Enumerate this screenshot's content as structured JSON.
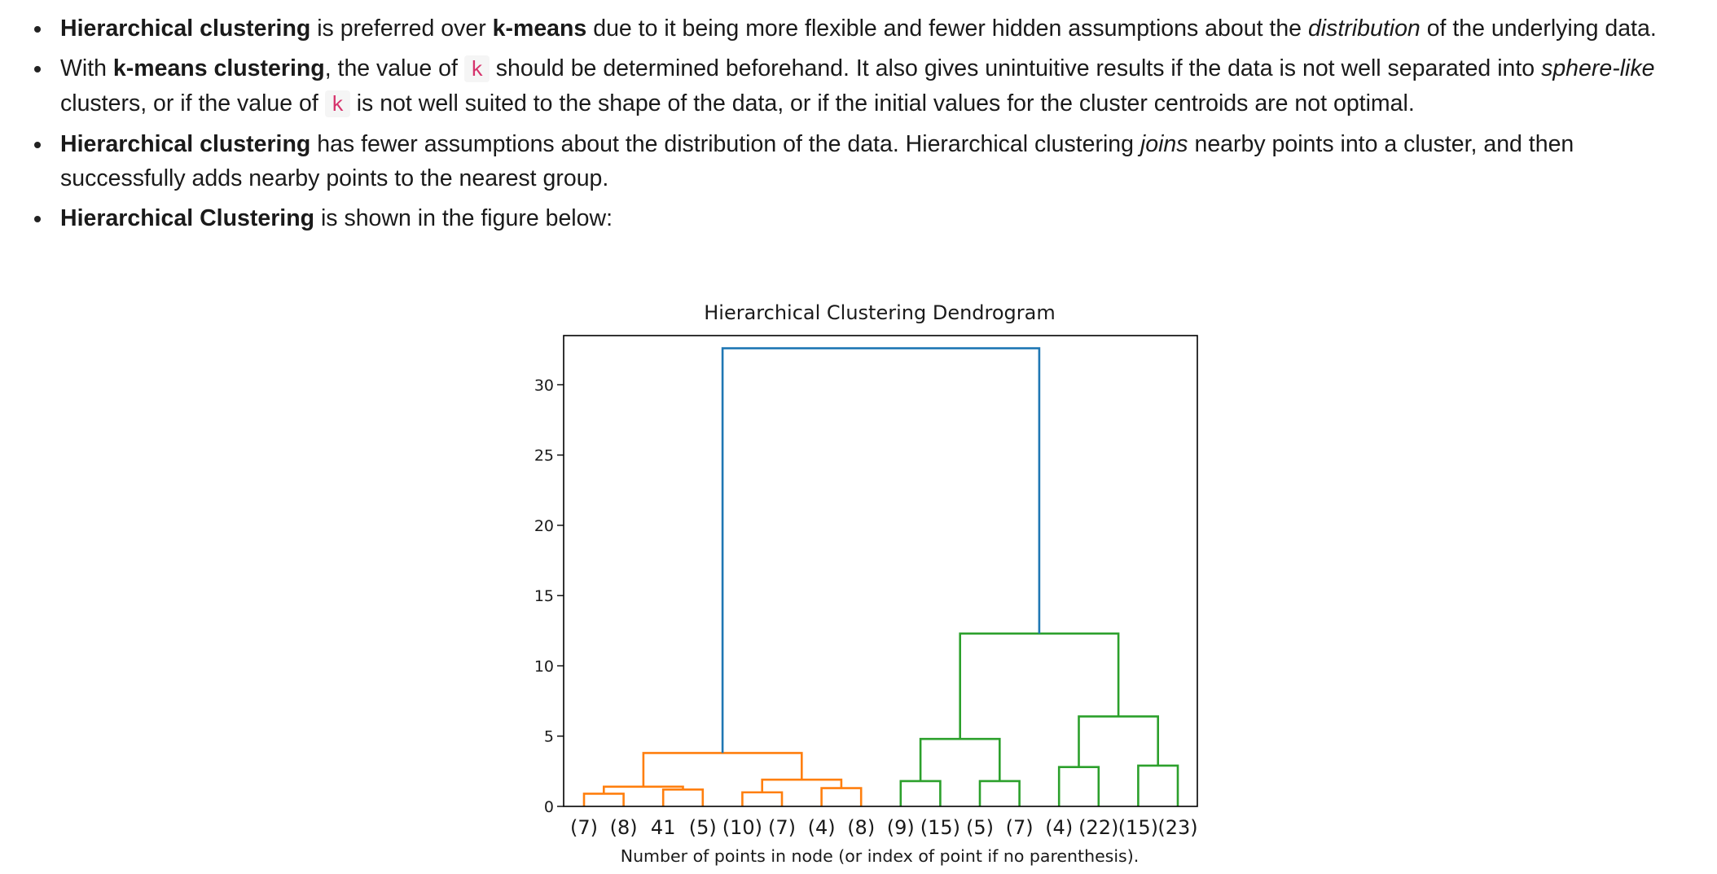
{
  "bullets": [
    {
      "parts": [
        {
          "t": "b",
          "v": "Hierarchical clustering"
        },
        {
          "t": "s",
          "v": " is preferred over "
        },
        {
          "t": "b",
          "v": "k-means"
        },
        {
          "t": "s",
          "v": " due to it being more flexible and fewer hidden assumptions about the "
        },
        {
          "t": "i",
          "v": "distribution"
        },
        {
          "t": "s",
          "v": " of the underlying data."
        }
      ]
    },
    {
      "parts": [
        {
          "t": "s",
          "v": "With "
        },
        {
          "t": "b",
          "v": "k-means clustering"
        },
        {
          "t": "s",
          "v": ", the value of "
        },
        {
          "t": "c",
          "v": "k"
        },
        {
          "t": "s",
          "v": " should be determined beforehand. It also gives unintuitive results if the data is not well separated into "
        },
        {
          "t": "i",
          "v": "sphere-like"
        },
        {
          "t": "s",
          "v": " clusters, or if the value of "
        },
        {
          "t": "c",
          "v": "k"
        },
        {
          "t": "s",
          "v": " is not well suited to the shape of the data, or if the initial values for the cluster centroids are not optimal."
        }
      ]
    },
    {
      "parts": [
        {
          "t": "b",
          "v": "Hierarchical clustering"
        },
        {
          "t": "s",
          "v": " has fewer assumptions about the distribution of the data. Hierarchical clustering "
        },
        {
          "t": "i",
          "v": "joins"
        },
        {
          "t": "s",
          "v": " nearby points into a cluster, and then successfully adds nearby points to the nearest group."
        }
      ]
    },
    {
      "parts": [
        {
          "t": "b",
          "v": "Hierarchical Clustering"
        },
        {
          "t": "s",
          "v": " is shown in the figure below:"
        }
      ]
    }
  ],
  "chart_data": {
    "type": "dendrogram",
    "title": "Hierarchical Clustering Dendrogram",
    "xlabel": "Number of points in node (or index of point if no parenthesis).",
    "ylabel": "",
    "ylim": [
      0,
      33.5
    ],
    "yticks": [
      0,
      5,
      10,
      15,
      20,
      25,
      30
    ],
    "leaves": [
      "(7)",
      "(8)",
      "41",
      "(5)",
      "(10)",
      "(7)",
      "(4)",
      "(8)",
      "(9)",
      "(15)",
      "(5)",
      "(7)",
      "(4)",
      "(22)",
      "(15)",
      "(23)"
    ],
    "colors": {
      "root": "#1f77b4",
      "left": "#ff7f0e",
      "right": "#2ca02c",
      "axis": "#000000"
    },
    "links": [
      {
        "left": 0,
        "right": 1,
        "height": 0.9,
        "color": "left"
      },
      {
        "left": 2,
        "right": 3,
        "height": 1.2,
        "color": "left"
      },
      {
        "left": 16,
        "right": 17,
        "height": 1.4,
        "color": "left"
      },
      {
        "left": 4,
        "right": 5,
        "height": 1.0,
        "color": "left"
      },
      {
        "left": 6,
        "right": 7,
        "height": 1.3,
        "color": "left"
      },
      {
        "left": 19,
        "right": 20,
        "height": 1.9,
        "color": "left"
      },
      {
        "left": 18,
        "right": 21,
        "height": 3.8,
        "color": "left"
      },
      {
        "left": 8,
        "right": 9,
        "height": 1.8,
        "color": "right"
      },
      {
        "left": 10,
        "right": 11,
        "height": 1.8,
        "color": "right"
      },
      {
        "left": 23,
        "right": 24,
        "height": 4.8,
        "color": "right"
      },
      {
        "left": 12,
        "right": 13,
        "height": 2.8,
        "color": "right"
      },
      {
        "left": 14,
        "right": 15,
        "height": 2.9,
        "color": "right"
      },
      {
        "left": 26,
        "right": 27,
        "height": 6.4,
        "color": "right"
      },
      {
        "left": 25,
        "right": 28,
        "height": 12.3,
        "color": "right"
      },
      {
        "left": 22,
        "right": 29,
        "height": 32.6,
        "color": "root"
      }
    ]
  }
}
